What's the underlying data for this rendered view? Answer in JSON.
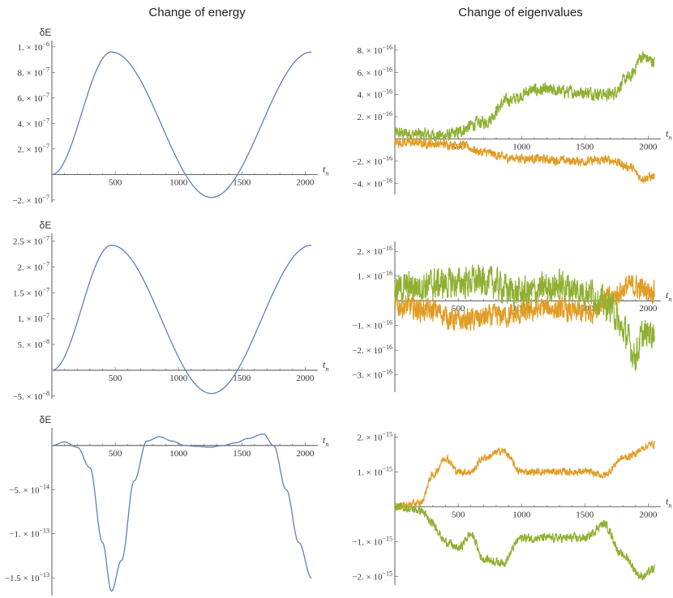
{
  "titles": {
    "left": "Change of energy",
    "right": "Change of eigenvalues"
  },
  "colors": {
    "blue": "#5e81b5",
    "orange": "#e19c24",
    "green": "#8fb032"
  },
  "chart_data": [
    {
      "type": "line",
      "column_title": "Change of energy",
      "xlabel": "t_n",
      "ylabel": "δE",
      "xlim": [
        0,
        2100
      ],
      "xticks": [
        500,
        1000,
        1500,
        2000
      ],
      "ylim": [
        -2.2e-07,
        1.05e-06
      ],
      "yticks": [
        -2e-07,
        2e-07,
        4e-07,
        6e-07,
        8e-07,
        1e-06
      ],
      "ytick_labels": [
        "−2.×10⁻⁷",
        "2.×10⁻⁷",
        "4.×10⁻⁷",
        "6.×10⁻⁷",
        "8.×10⁻⁷",
        "1.×10⁻⁶"
      ],
      "series": [
        {
          "color": "blue",
          "shape": "cosine",
          "points": [
            [
              0,
              0
            ],
            [
              470,
              9.6e-07
            ],
            [
              1260,
              -1.8e-07
            ],
            [
              2050,
              9.6e-07
            ]
          ]
        }
      ]
    },
    {
      "type": "line",
      "column_title": "Change of eigenvalues",
      "xlabel": "t_n",
      "ylabel": "",
      "xlim": [
        0,
        2100
      ],
      "xticks": [
        500,
        1000,
        1500,
        2000
      ],
      "ylim": [
        -5e-16,
        8.5e-16
      ],
      "yticks": [
        -4e-16,
        -2e-16,
        2e-16,
        4e-16,
        6e-16,
        8e-16
      ],
      "ytick_labels": [
        "−4.×10⁻¹⁶",
        "−2.×10⁻¹⁶",
        "2.×10⁻¹⁶",
        "4.×10⁻¹⁶",
        "6.×10⁻¹⁶",
        "8.×10⁻¹⁶"
      ],
      "series": [
        {
          "color": "green",
          "noise": 5.5e-17,
          "points": [
            [
              0,
              5e-17
            ],
            [
              400,
              3e-17
            ],
            [
              700,
              1.5e-16
            ],
            [
              900,
              3.5e-16
            ],
            [
              1100,
              4.4e-16
            ],
            [
              1500,
              4.2e-16
            ],
            [
              1700,
              4e-16
            ],
            [
              1850,
              5.5e-16
            ],
            [
              1950,
              7.4e-16
            ],
            [
              2050,
              7e-16
            ]
          ]
        },
        {
          "color": "orange",
          "noise": 4e-17,
          "points": [
            [
              0,
              -3e-17
            ],
            [
              500,
              -5e-17
            ],
            [
              700,
              -1.2e-16
            ],
            [
              900,
              -1.7e-16
            ],
            [
              1500,
              -2e-16
            ],
            [
              1700,
              -1.9e-16
            ],
            [
              1850,
              -2.5e-16
            ],
            [
              1950,
              -3.5e-16
            ],
            [
              2050,
              -3.4e-16
            ]
          ]
        }
      ]
    },
    {
      "type": "line",
      "column_title": "Change of energy",
      "xlabel": "t_n",
      "ylabel": "δE",
      "xlim": [
        0,
        2100
      ],
      "xticks": [
        500,
        1000,
        1500,
        2000
      ],
      "ylim": [
        -5.5e-08,
        2.65e-07
      ],
      "yticks": [
        -5e-08,
        5e-08,
        1e-07,
        1.5e-07,
        2e-07,
        2.5e-07
      ],
      "ytick_labels": [
        "−5.×10⁻⁸",
        "5.×10⁻⁸",
        "1.×10⁻⁷",
        "1.5×10⁻⁷",
        "2.×10⁻⁷",
        "2.5×10⁻⁷"
      ],
      "series": [
        {
          "color": "blue",
          "shape": "cosine",
          "points": [
            [
              0,
              0
            ],
            [
              470,
              2.42e-07
            ],
            [
              1260,
              -4.5e-08
            ],
            [
              2050,
              2.42e-07
            ]
          ]
        }
      ]
    },
    {
      "type": "line",
      "column_title": "Change of eigenvalues",
      "xlabel": "t_n",
      "ylabel": "",
      "xlim": [
        0,
        2100
      ],
      "xticks": [
        500,
        1000,
        1500,
        2000
      ],
      "ylim": [
        -3.7e-16,
        2.4e-16
      ],
      "yticks": [
        -3e-16,
        -2e-16,
        -1e-16,
        1e-16,
        2e-16
      ],
      "ytick_labels": [
        "−3.×10⁻¹⁶",
        "−2.×10⁻¹⁶",
        "−1.×10⁻¹⁶",
        "1.×10⁻¹⁶",
        "2.×10⁻¹⁶"
      ],
      "series": [
        {
          "color": "orange",
          "noise": 4.5e-17,
          "points": [
            [
              0,
              -2e-17
            ],
            [
              300,
              -4e-17
            ],
            [
              500,
              -8e-17
            ],
            [
              900,
              -6e-17
            ],
            [
              1200,
              -3e-17
            ],
            [
              1500,
              -5e-17
            ],
            [
              1700,
              1e-17
            ],
            [
              1850,
              6e-17
            ],
            [
              2050,
              4e-17
            ]
          ]
        },
        {
          "color": "green",
          "noise": 6e-17,
          "points": [
            [
              0,
              5e-17
            ],
            [
              400,
              7e-17
            ],
            [
              700,
              8e-17
            ],
            [
              1000,
              3e-17
            ],
            [
              1300,
              6e-17
            ],
            [
              1500,
              4e-17
            ],
            [
              1700,
              -2e-17
            ],
            [
              1800,
              -1.2e-16
            ],
            [
              1900,
              -2.2e-16
            ],
            [
              1960,
              -1.4e-16
            ],
            [
              2050,
              -1.2e-16
            ]
          ]
        }
      ]
    },
    {
      "type": "line",
      "column_title": "Change of energy",
      "xlabel": "t_n",
      "ylabel": "δE",
      "xlim": [
        0,
        2100
      ],
      "xticks": [
        500,
        1000,
        1500,
        2000
      ],
      "ylim": [
        -1.7e-13,
        2e-14
      ],
      "yticks": [
        -1.5e-13,
        -1e-13,
        -5e-14
      ],
      "ytick_labels": [
        "−1.5×10⁻¹³",
        "−1.×10⁻¹³",
        "−5.×10⁻¹⁴"
      ],
      "series": [
        {
          "color": "blue",
          "shape": "smooth",
          "points": [
            [
              0,
              0
            ],
            [
              100,
              4e-15
            ],
            [
              200,
              -2e-15
            ],
            [
              300,
              -2.5e-14
            ],
            [
              400,
              -1.1e-13
            ],
            [
              470,
              -1.65e-13
            ],
            [
              550,
              -1.3e-13
            ],
            [
              650,
              -4e-14
            ],
            [
              750,
              5e-15
            ],
            [
              850,
              1e-14
            ],
            [
              950,
              5e-15
            ],
            [
              1050,
              0
            ],
            [
              1150,
              -1e-15
            ],
            [
              1250,
              -2e-15
            ],
            [
              1350,
              0
            ],
            [
              1450,
              3e-15
            ],
            [
              1550,
              8e-15
            ],
            [
              1670,
              1.3e-14
            ],
            [
              1750,
              0
            ],
            [
              1850,
              -5e-14
            ],
            [
              1950,
              -1.1e-13
            ],
            [
              2050,
              -1.5e-13
            ]
          ]
        }
      ]
    },
    {
      "type": "line",
      "column_title": "Change of eigenvalues",
      "xlabel": "t_n",
      "ylabel": "",
      "xlim": [
        0,
        2100
      ],
      "xticks": [
        500,
        1000,
        1500,
        2000
      ],
      "ylim": [
        -2.25e-15,
        2.1e-15
      ],
      "yticks": [
        -2e-15,
        -1e-15,
        1e-15,
        2e-15
      ],
      "ytick_labels": [
        "−2.×10⁻¹⁵",
        "−1.×10⁻¹⁵",
        "1.×10⁻¹⁵",
        "2.×10⁻¹⁵"
      ],
      "series": [
        {
          "color": "orange",
          "noise": 1e-16,
          "points": [
            [
              0,
              0
            ],
            [
              200,
              1e-16
            ],
            [
              300,
              9e-16
            ],
            [
              400,
              1.4e-15
            ],
            [
              500,
              1e-15
            ],
            [
              600,
              1e-15
            ],
            [
              700,
              1.4e-15
            ],
            [
              850,
              1.6e-15
            ],
            [
              1000,
              1e-15
            ],
            [
              1500,
              1e-15
            ],
            [
              1650,
              9e-16
            ],
            [
              1800,
              1.4e-15
            ],
            [
              2050,
              1.8e-15
            ]
          ]
        },
        {
          "color": "green",
          "noise": 1.2e-16,
          "points": [
            [
              0,
              0
            ],
            [
              200,
              -1e-16
            ],
            [
              300,
              -5e-16
            ],
            [
              400,
              -1e-15
            ],
            [
              500,
              -1.2e-15
            ],
            [
              600,
              -8e-16
            ],
            [
              700,
              -1.5e-15
            ],
            [
              850,
              -1.6e-15
            ],
            [
              1000,
              -9e-16
            ],
            [
              1500,
              -9e-16
            ],
            [
              1650,
              -5e-16
            ],
            [
              1800,
              -1.4e-15
            ],
            [
              1950,
              -2e-15
            ],
            [
              2050,
              -1.8e-15
            ]
          ]
        }
      ]
    }
  ]
}
